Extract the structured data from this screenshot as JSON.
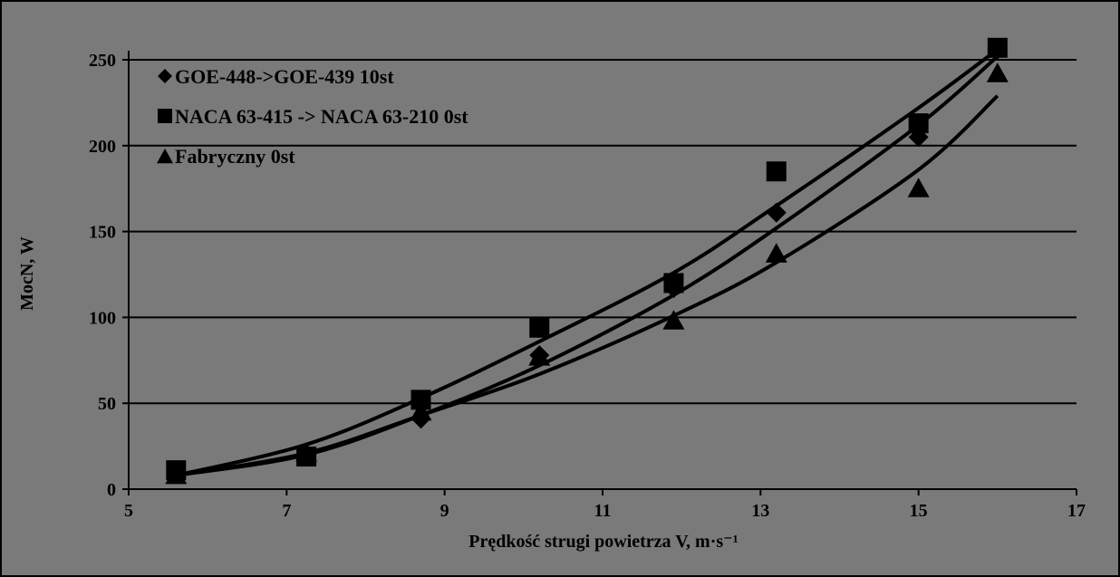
{
  "chart_data": {
    "type": "scatter",
    "xlabel": "Prędkość strugi powietrza V, m·s⁻¹",
    "ylabel": "MocN, W",
    "xlim": [
      5,
      17
    ],
    "ylim": [
      0,
      250
    ],
    "xticks": [
      5,
      7,
      9,
      11,
      13,
      15,
      17
    ],
    "yticks": [
      0,
      50,
      100,
      150,
      200,
      250
    ],
    "grid": "horizontal",
    "legend_position": "top-left",
    "series": [
      {
        "name": "GOE-448->GOE-439 10st",
        "marker": "diamond",
        "x": [
          5.6,
          7.25,
          8.7,
          10.2,
          11.9,
          13.2,
          15.0,
          16.0
        ],
        "y": [
          10,
          20,
          41,
          78,
          117,
          161,
          205,
          256
        ],
        "trend": [
          [
            5.6,
            8
          ],
          [
            7.25,
            20
          ],
          [
            8.7,
            43
          ],
          [
            10.2,
            72
          ],
          [
            11.9,
            113
          ],
          [
            13.2,
            152
          ],
          [
            15.0,
            212
          ],
          [
            16.0,
            252
          ]
        ]
      },
      {
        "name": "NACA 63-415 -> NACA 63-210 0st",
        "marker": "square",
        "x": [
          5.6,
          7.25,
          8.7,
          10.2,
          11.9,
          13.2,
          15.0,
          16.0
        ],
        "y": [
          11,
          19,
          52,
          94,
          120,
          185,
          213,
          257
        ],
        "trend": [
          [
            5.6,
            8
          ],
          [
            7.25,
            26
          ],
          [
            8.7,
            53
          ],
          [
            10.2,
            86
          ],
          [
            11.9,
            126
          ],
          [
            13.2,
            165
          ],
          [
            15.0,
            222
          ],
          [
            16.0,
            256
          ]
        ]
      },
      {
        "name": "Fabryczny 0st",
        "marker": "triangle",
        "x": [
          5.6,
          7.25,
          8.7,
          10.2,
          11.9,
          13.2,
          15.0,
          16.0
        ],
        "y": [
          8,
          21,
          45,
          77,
          98,
          137,
          175,
          242
        ],
        "trend": [
          [
            5.6,
            8
          ],
          [
            7.25,
            21
          ],
          [
            8.7,
            43
          ],
          [
            10.2,
            67
          ],
          [
            11.9,
            101
          ],
          [
            13.2,
            132
          ],
          [
            15.0,
            186
          ],
          [
            16.0,
            229
          ]
        ]
      }
    ]
  }
}
